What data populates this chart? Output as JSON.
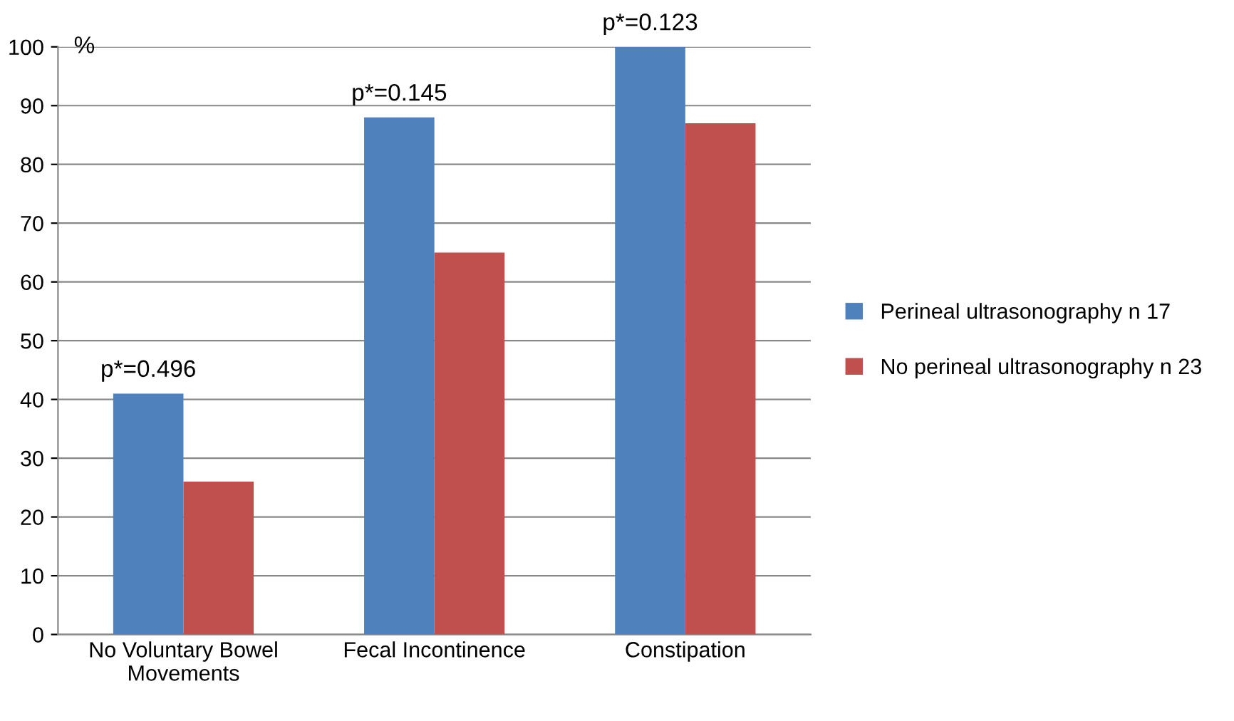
{
  "chart_data": {
    "type": "bar",
    "ylabel": "%",
    "categories": [
      "No Voluntary Bowel\nMovements",
      "Fecal Incontinence",
      "Constipation"
    ],
    "series": [
      {
        "name": "Perineal ultrasonography n 17",
        "color": "#4f81bd",
        "values": [
          41,
          88,
          100
        ]
      },
      {
        "name": "No perineal ultrasonography n 23",
        "color": "#c0504d",
        "values": [
          26,
          65,
          87
        ]
      }
    ],
    "annotations": [
      "p*=0.496",
      "p*=0.145",
      "p*=0.123"
    ],
    "ylim": [
      0,
      100
    ],
    "yticks": [
      0,
      10,
      20,
      30,
      40,
      50,
      60,
      70,
      80,
      90,
      100
    ],
    "grid": "y",
    "legend": "right"
  }
}
